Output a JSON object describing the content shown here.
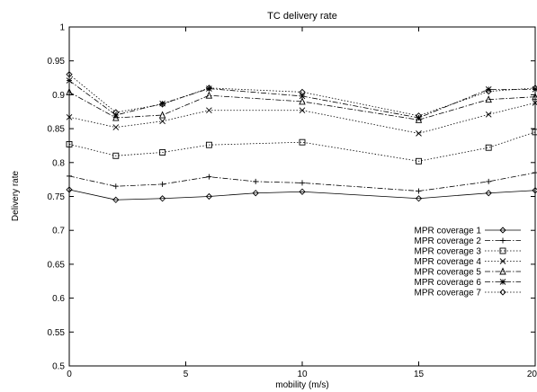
{
  "chart_data": {
    "type": "line",
    "title": "TC delivery rate",
    "xlabel": "mobility (m/s)",
    "ylabel": "Delivery rate",
    "xlim": [
      0,
      20
    ],
    "ylim": [
      0.5,
      1.0
    ],
    "xticks": [
      0,
      5,
      10,
      15,
      20
    ],
    "yticks": [
      0.5,
      0.55,
      0.6,
      0.65,
      0.7,
      0.75,
      0.8,
      0.85,
      0.9,
      0.95,
      1.0
    ],
    "ytick_labels": [
      "0.5",
      "0.55",
      "0.6",
      "0.65",
      "0.7",
      "0.75",
      "0.8",
      "0.85",
      "0.9",
      "0.95",
      "1"
    ],
    "grid": false,
    "legend_position": "right",
    "x": [
      0,
      2,
      4,
      6,
      8,
      10,
      15,
      18,
      20
    ],
    "series": [
      {
        "name": "MPR coverage 1",
        "marker": "diamond",
        "dash": "solid",
        "x": [
          0,
          2,
          4,
          6,
          8,
          10,
          15,
          18,
          20
        ],
        "values": [
          0.76,
          0.745,
          0.747,
          0.75,
          0.755,
          0.757,
          0.747,
          0.755,
          0.759
        ]
      },
      {
        "name": "MPR coverage 2",
        "marker": "plus",
        "dash": "dashdot",
        "x": [
          0,
          2,
          4,
          6,
          8,
          10,
          15,
          18,
          20
        ],
        "values": [
          0.78,
          0.765,
          0.768,
          0.779,
          0.772,
          0.77,
          0.758,
          0.772,
          0.785
        ]
      },
      {
        "name": "MPR coverage 3",
        "marker": "square",
        "dash": "dotted",
        "x": [
          0,
          2,
          4,
          6,
          10,
          15,
          18,
          20
        ],
        "values": [
          0.827,
          0.81,
          0.815,
          0.826,
          0.83,
          0.802,
          0.822,
          0.845
        ]
      },
      {
        "name": "MPR coverage 4",
        "marker": "cross",
        "dash": "dotted",
        "x": [
          0,
          2,
          4,
          6,
          10,
          15,
          18,
          20
        ],
        "values": [
          0.867,
          0.852,
          0.861,
          0.877,
          0.877,
          0.843,
          0.871,
          0.888
        ]
      },
      {
        "name": "MPR coverage 5",
        "marker": "triangle",
        "dash": "dashdot",
        "x": [
          0,
          2,
          4,
          6,
          10,
          15,
          18,
          20
        ],
        "values": [
          0.904,
          0.866,
          0.87,
          0.899,
          0.89,
          0.863,
          0.893,
          0.897
        ]
      },
      {
        "name": "MPR coverage 6",
        "marker": "star",
        "dash": "dashdot",
        "x": [
          0,
          2,
          4,
          6,
          10,
          15,
          18,
          20
        ],
        "values": [
          0.921,
          0.87,
          0.887,
          0.909,
          0.898,
          0.866,
          0.908,
          0.908
        ]
      },
      {
        "name": "MPR coverage 7",
        "marker": "diamond",
        "dash": "dotted",
        "x": [
          0,
          2,
          4,
          6,
          10,
          15,
          18,
          20
        ],
        "values": [
          0.93,
          0.874,
          0.886,
          0.91,
          0.904,
          0.869,
          0.905,
          0.91
        ]
      }
    ]
  }
}
